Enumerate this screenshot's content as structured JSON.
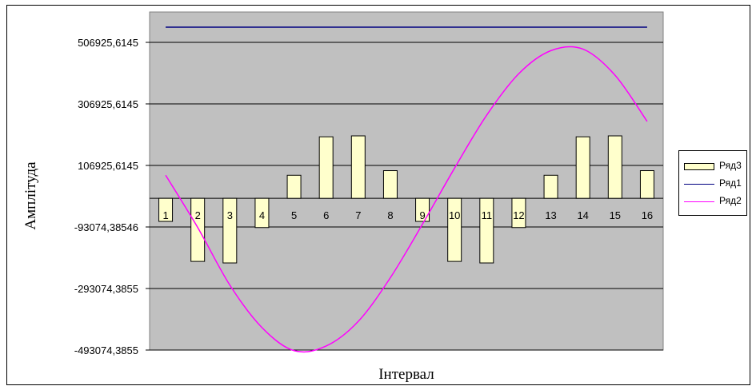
{
  "chart_data": {
    "type": "bar",
    "xlabel": "Інтервал",
    "ylabel": "Амплітуда",
    "categories": [
      "1",
      "2",
      "3",
      "4",
      "5",
      "6",
      "7",
      "8",
      "9",
      "10",
      "11",
      "12",
      "13",
      "14",
      "15",
      "16"
    ],
    "y_ticks": [
      "506925,6145",
      "306925,6145",
      "106925,6145",
      "-93074,38546",
      "-293074,3855",
      "-493074,3855"
    ],
    "y_tick_values": [
      506925.6145,
      306925.6145,
      106925.6145,
      -93074.38546,
      -293074.3855,
      -493074.3855
    ],
    "ylim": [
      -493074.3855,
      506925.6145
    ],
    "grid": true,
    "legend_position": "right",
    "series": [
      {
        "name": "Ряд3",
        "kind": "bar",
        "color": "#FFFFCC",
        "values": [
          -75000,
          -205000,
          -210000,
          -95000,
          75000,
          200000,
          203000,
          90000,
          -75000,
          -205000,
          -210000,
          -95000,
          75000,
          200000,
          203000,
          90000
        ]
      },
      {
        "name": "Ряд1",
        "kind": "line",
        "color": "#000080",
        "values": [
          560000,
          560000,
          560000,
          560000,
          560000,
          560000,
          560000,
          560000,
          560000,
          560000,
          560000,
          560000,
          560000,
          560000,
          560000,
          560000
        ]
      },
      {
        "name": "Ряд2",
        "kind": "line",
        "color": "#FF00FF",
        "values": [
          75000,
          -95000,
          -282000,
          -420000,
          -495000,
          -480000,
          -400000,
          -258000,
          -84000,
          98000,
          270000,
          405000,
          480000,
          485000,
          400000,
          250000
        ]
      }
    ]
  }
}
